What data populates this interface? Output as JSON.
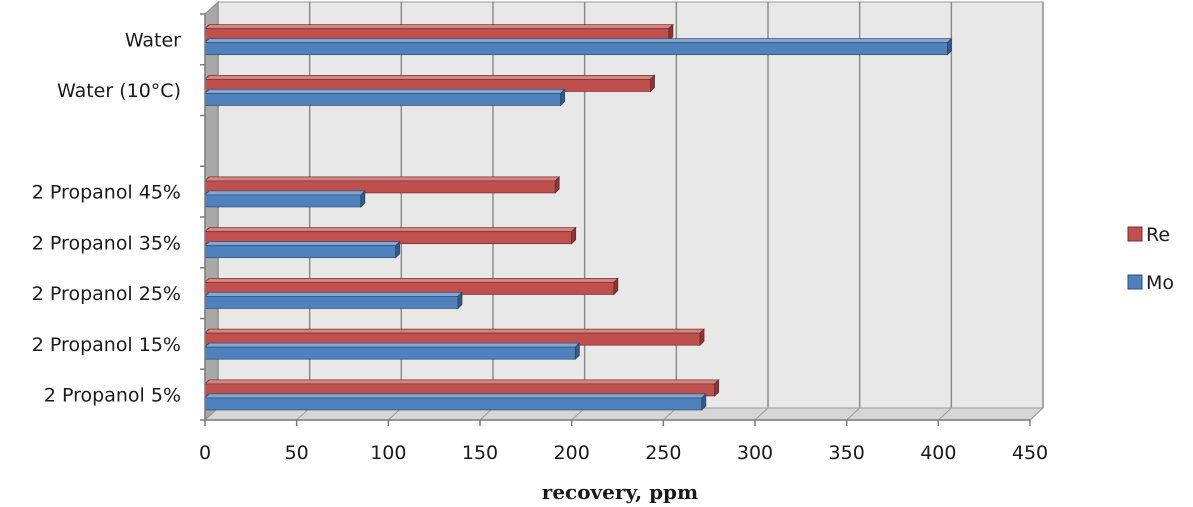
{
  "chart_data": {
    "type": "bar",
    "orientation": "horizontal",
    "categories": [
      "2 Propanol 5%",
      "2 Propanol 15%",
      "2 Propanol 25%",
      "2 Propanol 35%",
      "2 Propanol 45%",
      "",
      "Water (10°C)",
      "Water"
    ],
    "series": [
      {
        "name": "Re",
        "color": "#c0504d",
        "values": [
          278,
          270,
          223,
          200,
          191,
          null,
          243,
          253
        ]
      },
      {
        "name": "Mo",
        "color": "#4f81bd",
        "values": [
          271,
          202,
          138,
          104,
          85,
          null,
          194,
          405
        ]
      }
    ],
    "title": "",
    "xlabel": "recovery, ppm",
    "ylabel": "",
    "xlim": [
      0,
      450
    ],
    "xticks": [
      0,
      50,
      100,
      150,
      200,
      250,
      300,
      350,
      400,
      450
    ],
    "grid": true,
    "legend": "right"
  }
}
